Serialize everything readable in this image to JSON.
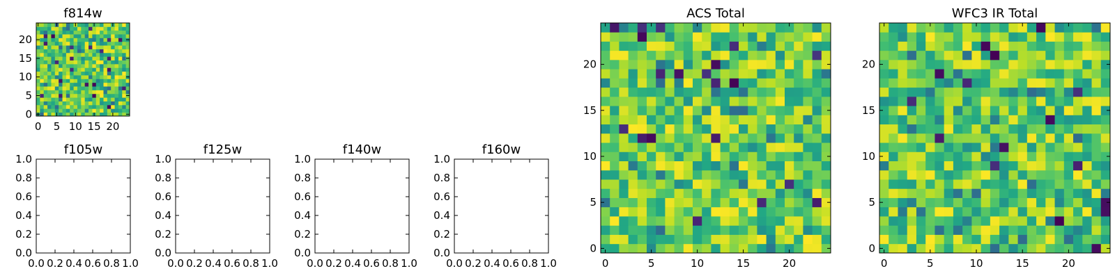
{
  "chart_data": [
    {
      "type": "heatmap",
      "title": "f814w",
      "size": 25,
      "xlim": [
        -0.5,
        24.5
      ],
      "ylim": [
        -0.5,
        24.5
      ],
      "xticks": [
        0,
        5,
        10,
        15,
        20
      ],
      "yticks": [
        0,
        5,
        10,
        15,
        20
      ],
      "colormap": "viridis",
      "vmin": 0,
      "vmax": 1,
      "seed": 814
    },
    {
      "type": "empty",
      "title": "f105w",
      "xlim": [
        0,
        1
      ],
      "ylim": [
        0,
        1
      ],
      "xticks": [
        "0.0",
        "0.2",
        "0.4",
        "0.6",
        "0.8",
        "1.0"
      ],
      "yticks": [
        "0.0",
        "0.2",
        "0.4",
        "0.6",
        "0.8",
        "1.0"
      ]
    },
    {
      "type": "empty",
      "title": "f125w",
      "xlim": [
        0,
        1
      ],
      "ylim": [
        0,
        1
      ],
      "xticks": [
        "0.0",
        "0.2",
        "0.4",
        "0.6",
        "0.8",
        "1.0"
      ],
      "yticks": [
        "0.0",
        "0.2",
        "0.4",
        "0.6",
        "0.8",
        "1.0"
      ]
    },
    {
      "type": "empty",
      "title": "f140w",
      "xlim": [
        0,
        1
      ],
      "ylim": [
        0,
        1
      ],
      "xticks": [
        "0.0",
        "0.2",
        "0.4",
        "0.6",
        "0.8",
        "1.0"
      ],
      "yticks": [
        "0.0",
        "0.2",
        "0.4",
        "0.6",
        "0.8",
        "1.0"
      ]
    },
    {
      "type": "empty",
      "title": "f160w",
      "xlim": [
        0,
        1
      ],
      "ylim": [
        0,
        1
      ],
      "xticks": [
        "0.0",
        "0.2",
        "0.4",
        "0.6",
        "0.8",
        "1.0"
      ],
      "yticks": [
        "0.0",
        "0.2",
        "0.4",
        "0.6",
        "0.8",
        "1.0"
      ]
    },
    {
      "type": "heatmap",
      "title": "ACS Total",
      "size": 25,
      "xlim": [
        -0.5,
        24.5
      ],
      "ylim": [
        -0.5,
        24.5
      ],
      "xticks": [
        0,
        5,
        10,
        15,
        20
      ],
      "yticks": [
        0,
        5,
        10,
        15,
        20
      ],
      "colormap": "viridis",
      "vmin": 0,
      "vmax": 1,
      "seed": 1001
    },
    {
      "type": "heatmap",
      "title": "WFC3 IR Total",
      "size": 25,
      "xlim": [
        -0.5,
        24.5
      ],
      "ylim": [
        -0.5,
        24.5
      ],
      "xticks": [
        0,
        5,
        10,
        15,
        20
      ],
      "yticks": [
        0,
        5,
        10,
        15,
        20
      ],
      "colormap": "viridis",
      "vmin": 0,
      "vmax": 1,
      "seed": 2002
    }
  ]
}
